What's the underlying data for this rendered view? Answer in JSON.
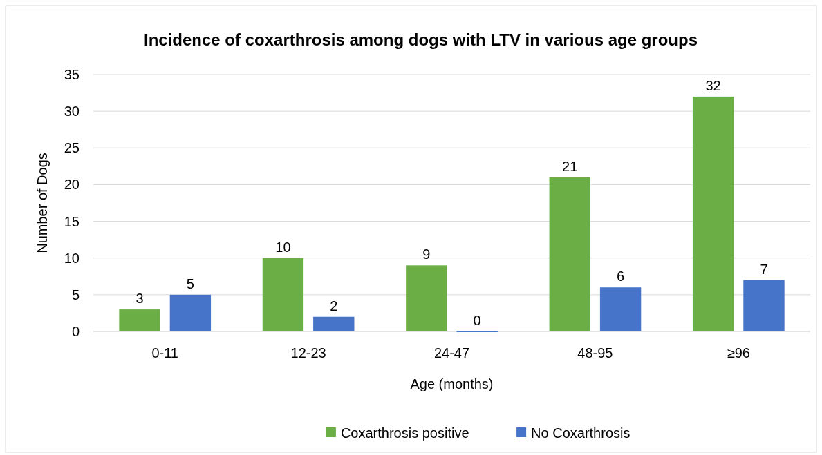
{
  "chart_data": {
    "type": "bar",
    "title": "Incidence of coxarthrosis among dogs with LTV in various age groups",
    "xlabel": "Age (months)",
    "ylabel": "Number of Dogs",
    "categories": [
      "0-11",
      "12-23",
      "24-47",
      "48-95",
      "≥96"
    ],
    "series": [
      {
        "name": "Coxarthrosis positive",
        "color": "#6aae45",
        "values": [
          3,
          10,
          9,
          21,
          32
        ]
      },
      {
        "name": "No Coxarthrosis",
        "color": "#4674c8",
        "values": [
          5,
          2,
          0,
          6,
          7
        ]
      }
    ],
    "ylim": [
      0,
      35
    ],
    "yticks": [
      0,
      5,
      10,
      15,
      20,
      25,
      30,
      35
    ],
    "grid": "y",
    "legend": "bottom",
    "data_labels": true
  }
}
